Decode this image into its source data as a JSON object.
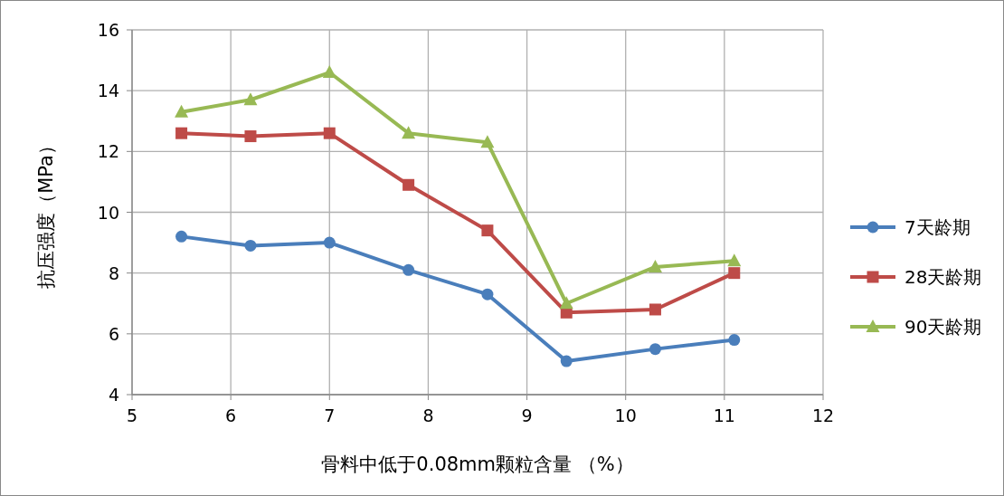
{
  "chart_data": {
    "type": "line",
    "xlabel": "骨料中低于0.08mm颗粒含量 （%）",
    "ylabel": "抗压强度（MPa）",
    "x": [
      5.5,
      6.2,
      7,
      7.8,
      8.6,
      9.4,
      10.3,
      11.1
    ],
    "series": [
      {
        "name": "7天龄期",
        "color": "#4a7ebb",
        "marker": "circle",
        "values": [
          9.2,
          8.9,
          9.0,
          8.1,
          7.3,
          5.1,
          5.5,
          5.8
        ]
      },
      {
        "name": "28天龄期",
        "color": "#be4b48",
        "marker": "square",
        "values": [
          12.6,
          12.5,
          12.6,
          10.9,
          9.4,
          6.7,
          6.8,
          8.0
        ]
      },
      {
        "name": "90天龄期",
        "color": "#98b954",
        "marker": "triangle",
        "values": [
          13.3,
          13.7,
          14.6,
          12.6,
          12.3,
          7.0,
          8.2,
          8.4
        ]
      }
    ],
    "xlim": [
      5,
      12
    ],
    "xticks": [
      5,
      6,
      7,
      8,
      9,
      10,
      11,
      12
    ],
    "ylim": [
      4,
      16
    ],
    "yticks": [
      4,
      6,
      8,
      10,
      12,
      14,
      16
    ],
    "grid": true,
    "legend": "right",
    "line_style": "solid"
  }
}
